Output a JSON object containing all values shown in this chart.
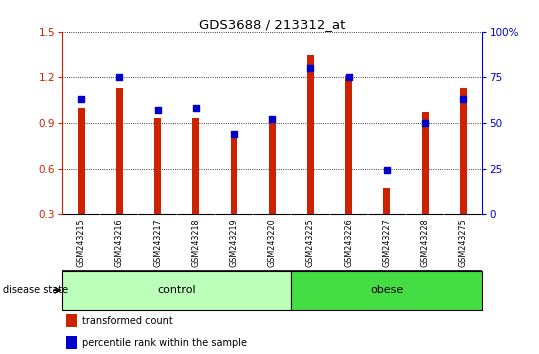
{
  "title": "GDS3688 / 213312_at",
  "samples": [
    "GSM243215",
    "GSM243216",
    "GSM243217",
    "GSM243218",
    "GSM243219",
    "GSM243220",
    "GSM243225",
    "GSM243226",
    "GSM243227",
    "GSM243228",
    "GSM243275"
  ],
  "transformed_count": [
    1.0,
    1.13,
    0.93,
    0.93,
    0.8,
    0.9,
    1.35,
    1.21,
    0.47,
    0.97,
    1.13
  ],
  "percentile_rank": [
    63,
    75,
    57,
    58,
    44,
    52,
    80,
    75,
    24,
    50,
    63
  ],
  "bar_color": "#cc2200",
  "dot_color": "#0000cc",
  "bar_bottom": 0.3,
  "ylim_left": [
    0.3,
    1.5
  ],
  "ylim_right": [
    0,
    100
  ],
  "yticks_left": [
    0.3,
    0.6,
    0.9,
    1.2,
    1.5
  ],
  "yticks_right": [
    0,
    25,
    50,
    75,
    100
  ],
  "ytick_labels_right": [
    "0",
    "25",
    "50",
    "75",
    "100%"
  ],
  "groups": [
    {
      "label": "control",
      "indices": [
        0,
        1,
        2,
        3,
        4,
        5
      ],
      "color": "#bbffbb"
    },
    {
      "label": "obese",
      "indices": [
        6,
        7,
        8,
        9,
        10
      ],
      "color": "#44dd44"
    }
  ],
  "disease_state_label": "disease state",
  "legend_items": [
    {
      "label": "transformed count",
      "color": "#cc2200"
    },
    {
      "label": "percentile rank within the sample",
      "color": "#0000cc"
    }
  ],
  "bar_width": 0.18,
  "background_color": "#ffffff",
  "tick_area_color": "#c8c8c8"
}
